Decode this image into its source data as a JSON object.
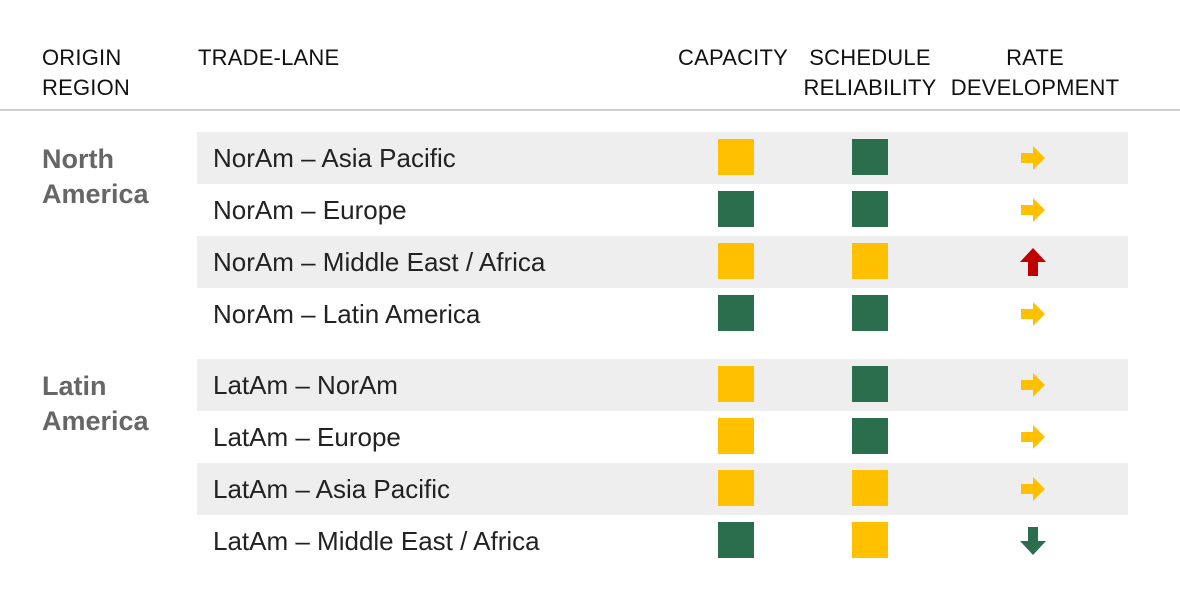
{
  "header": {
    "origin_region": [
      "ORIGIN",
      "REGION"
    ],
    "trade_lane": "TRADE-LANE",
    "capacity": "CAPACITY",
    "schedule_reliability": [
      "SCHEDULE",
      "RELIABILITY"
    ],
    "rate_development": [
      "RATE",
      "DEVELOPMENT"
    ]
  },
  "colors": {
    "yellow": "#FFC000",
    "green": "#2A6E4E",
    "red": "#C00000",
    "shade": "#EEEEEE"
  },
  "regions": [
    {
      "name": [
        "North",
        "America"
      ],
      "lanes": [
        {
          "label": "NorAm – Asia Pacific",
          "capacity": "yellow",
          "reliability": "green",
          "rate": "right"
        },
        {
          "label": "NorAm – Europe",
          "capacity": "green",
          "reliability": "green",
          "rate": "right"
        },
        {
          "label": "NorAm – Middle East / Africa",
          "capacity": "yellow",
          "reliability": "yellow",
          "rate": "up"
        },
        {
          "label": "NorAm – Latin America",
          "capacity": "green",
          "reliability": "green",
          "rate": "right"
        }
      ]
    },
    {
      "name": [
        "Latin",
        "America"
      ],
      "lanes": [
        {
          "label": "LatAm – NorAm",
          "capacity": "yellow",
          "reliability": "green",
          "rate": "right"
        },
        {
          "label": "LatAm – Europe",
          "capacity": "yellow",
          "reliability": "green",
          "rate": "right"
        },
        {
          "label": "LatAm – Asia Pacific",
          "capacity": "yellow",
          "reliability": "yellow",
          "rate": "right"
        },
        {
          "label": "LatAm – Middle East / Africa",
          "capacity": "green",
          "reliability": "yellow",
          "rate": "down"
        }
      ]
    }
  ]
}
